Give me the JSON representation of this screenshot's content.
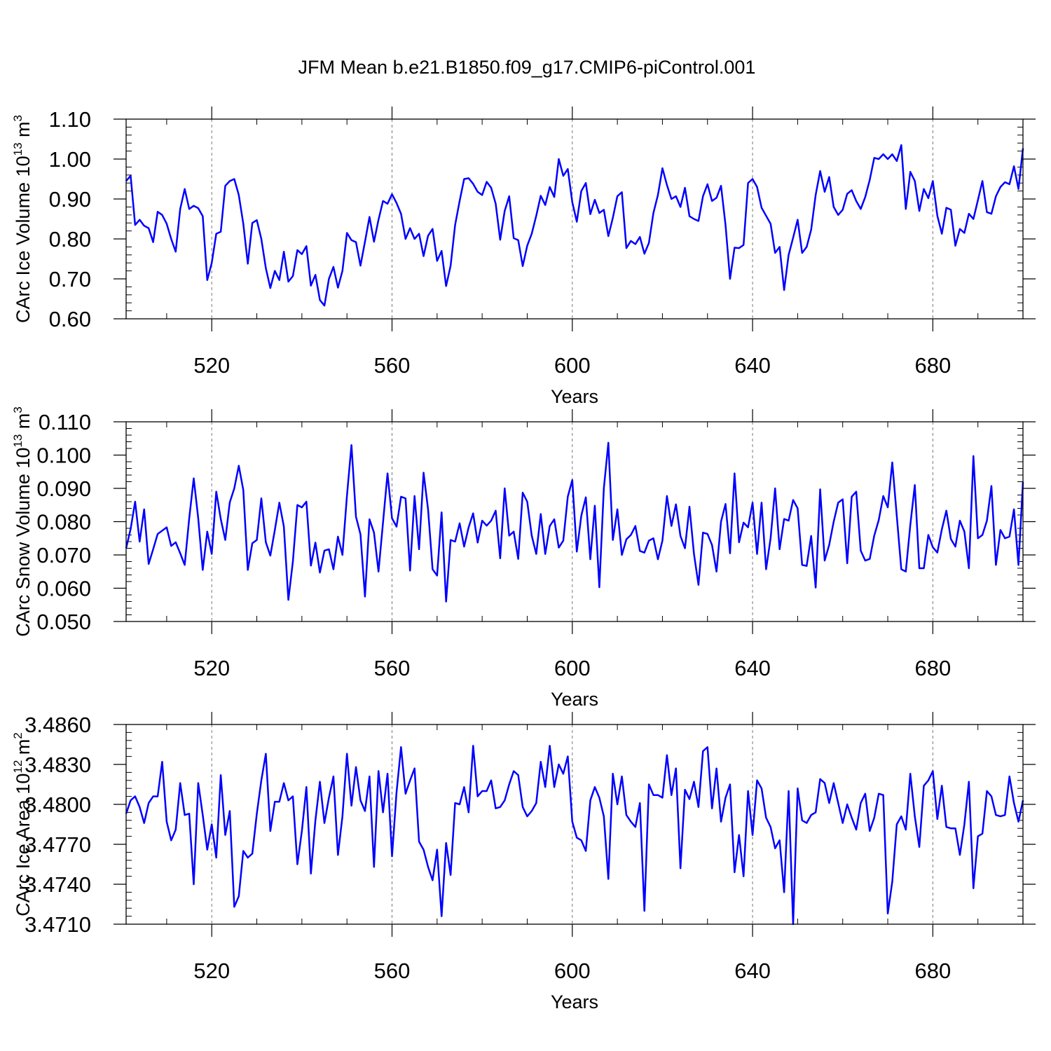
{
  "title": "JFM Mean b.e21.B1850.f09_g17.CMIP6-piControl.001",
  "line_color": "#0000ff",
  "chart_data": [
    {
      "type": "line",
      "ylabel": "CArc Ice Volume",
      "yunit_base": "10",
      "yunit_exp": "13",
      "yunit_tail": "m",
      "yunit_tail_exp": "3",
      "xlabel": "Years",
      "xlim": [
        501,
        700
      ],
      "ylim": [
        0.6,
        1.1
      ],
      "xticks": [
        520,
        560,
        600,
        640,
        680
      ],
      "xtick_labels": [
        "520",
        "560",
        "600",
        "640",
        "680"
      ],
      "yticks": [
        0.6,
        0.7,
        0.8,
        0.9,
        1.0,
        1.1
      ],
      "ytick_labels": [
        "0.60",
        "0.70",
        "0.80",
        "0.90",
        "1.00",
        "1.10"
      ],
      "grid": "vertical dashed at labeled x ticks",
      "x_start": 501,
      "series": [
        {
          "name": "CArc Ice Volume",
          "values": [
            0.945,
            0.958,
            0.835,
            0.848,
            0.833,
            0.827,
            0.792,
            0.868,
            0.86,
            0.838,
            0.8,
            0.768,
            0.875,
            0.925,
            0.875,
            0.883,
            0.877,
            0.857,
            0.697,
            0.74,
            0.813,
            0.818,
            0.933,
            0.945,
            0.95,
            0.91,
            0.838,
            0.738,
            0.84,
            0.847,
            0.8,
            0.727,
            0.677,
            0.72,
            0.697,
            0.768,
            0.693,
            0.707,
            0.772,
            0.762,
            0.782,
            0.683,
            0.71,
            0.647,
            0.633,
            0.7,
            0.73,
            0.678,
            0.72,
            0.815,
            0.797,
            0.792,
            0.733,
            0.793,
            0.855,
            0.793,
            0.848,
            0.895,
            0.888,
            0.912,
            0.89,
            0.863,
            0.8,
            0.827,
            0.8,
            0.813,
            0.757,
            0.808,
            0.825,
            0.745,
            0.77,
            0.682,
            0.733,
            0.835,
            0.895,
            0.95,
            0.952,
            0.938,
            0.918,
            0.91,
            0.943,
            0.928,
            0.888,
            0.798,
            0.87,
            0.907,
            0.802,
            0.797,
            0.732,
            0.783,
            0.813,
            0.858,
            0.908,
            0.885,
            0.93,
            0.905,
            1.0,
            0.958,
            0.975,
            0.892,
            0.843,
            0.92,
            0.94,
            0.862,
            0.898,
            0.865,
            0.873,
            0.807,
            0.853,
            0.907,
            0.917,
            0.777,
            0.795,
            0.787,
            0.805,
            0.763,
            0.79,
            0.865,
            0.91,
            0.977,
            0.935,
            0.9,
            0.907,
            0.88,
            0.928,
            0.857,
            0.85,
            0.845,
            0.907,
            0.937,
            0.895,
            0.903,
            0.933,
            0.835,
            0.7,
            0.778,
            0.777,
            0.785,
            0.94,
            0.95,
            0.93,
            0.878,
            0.858,
            0.838,
            0.765,
            0.78,
            0.672,
            0.76,
            0.803,
            0.848,
            0.765,
            0.78,
            0.823,
            0.91,
            0.97,
            0.918,
            0.955,
            0.88,
            0.86,
            0.873,
            0.913,
            0.922,
            0.895,
            0.875,
            0.905,
            0.948,
            1.003,
            1.0,
            1.012,
            1.0,
            1.012,
            0.995,
            1.035,
            0.875,
            0.968,
            0.945,
            0.87,
            0.925,
            0.902,
            0.945,
            0.858,
            0.813,
            0.878,
            0.873,
            0.783,
            0.825,
            0.815,
            0.863,
            0.85,
            0.897,
            0.945,
            0.867,
            0.863,
            0.907,
            0.93,
            0.942,
            0.937,
            0.982,
            0.925,
            1.027
          ]
        }
      ]
    },
    {
      "type": "line",
      "ylabel": "CArc Snow Volume",
      "yunit_base": "10",
      "yunit_exp": "13",
      "yunit_tail": "m",
      "yunit_tail_exp": "3",
      "xlabel": "Years",
      "xlim": [
        501,
        700
      ],
      "ylim": [
        0.05,
        0.11
      ],
      "xticks": [
        520,
        560,
        600,
        640,
        680
      ],
      "xtick_labels": [
        "520",
        "560",
        "600",
        "640",
        "680"
      ],
      "yticks": [
        0.05,
        0.06,
        0.07,
        0.08,
        0.09,
        0.1,
        0.11
      ],
      "ytick_labels": [
        "0.050",
        "0.060",
        "0.070",
        "0.080",
        "0.090",
        "0.100",
        "0.110"
      ],
      "grid": "vertical dashed at labeled x ticks",
      "x_start": 501,
      "series": [
        {
          "name": "CArc Snow Volume",
          "values": [
            0.072,
            0.0778,
            0.086,
            0.074,
            0.0837,
            0.0673,
            0.0717,
            0.0763,
            0.0773,
            0.0783,
            0.0727,
            0.0738,
            0.0705,
            0.067,
            0.081,
            0.093,
            0.081,
            0.0655,
            0.077,
            0.0703,
            0.089,
            0.0808,
            0.0745,
            0.0858,
            0.09,
            0.0968,
            0.0895,
            0.0655,
            0.0735,
            0.0745,
            0.087,
            0.0738,
            0.0698,
            0.0775,
            0.0857,
            0.0785,
            0.0565,
            0.068,
            0.085,
            0.0843,
            0.086,
            0.0668,
            0.0737,
            0.0647,
            0.0713,
            0.0717,
            0.0657,
            0.0755,
            0.07,
            0.0878,
            0.103,
            0.0815,
            0.0762,
            0.0575,
            0.0807,
            0.0767,
            0.065,
            0.0797,
            0.0945,
            0.081,
            0.0785,
            0.0875,
            0.087,
            0.0653,
            0.0877,
            0.0717,
            0.0947,
            0.0837,
            0.0657,
            0.0638,
            0.0828,
            0.056,
            0.0745,
            0.074,
            0.0795,
            0.0725,
            0.0783,
            0.0825,
            0.0737,
            0.0803,
            0.0788,
            0.0803,
            0.0833,
            0.069,
            0.09,
            0.0758,
            0.077,
            0.0688,
            0.0887,
            0.086,
            0.0758,
            0.0703,
            0.0823,
            0.0703,
            0.0787,
            0.0807,
            0.0722,
            0.0743,
            0.0875,
            0.0925,
            0.071,
            0.0818,
            0.0873,
            0.0687,
            0.0848,
            0.0603,
            0.09,
            0.1037,
            0.0745,
            0.0837,
            0.07,
            0.0747,
            0.076,
            0.0787,
            0.0712,
            0.0707,
            0.0743,
            0.075,
            0.0687,
            0.0743,
            0.0877,
            0.0787,
            0.0852,
            0.0757,
            0.072,
            0.0845,
            0.0703,
            0.061,
            0.0767,
            0.0763,
            0.073,
            0.065,
            0.08,
            0.0853,
            0.0705,
            0.0945,
            0.0738,
            0.0797,
            0.0783,
            0.0857,
            0.0703,
            0.0857,
            0.0657,
            0.075,
            0.09,
            0.0717,
            0.0808,
            0.0803,
            0.0865,
            0.084,
            0.067,
            0.0667,
            0.0757,
            0.0602,
            0.0897,
            0.0683,
            0.073,
            0.08,
            0.0857,
            0.0867,
            0.0675,
            0.0875,
            0.089,
            0.0713,
            0.0683,
            0.0688,
            0.0758,
            0.0805,
            0.0877,
            0.0843,
            0.0978,
            0.0817,
            0.0657,
            0.065,
            0.079,
            0.091,
            0.066,
            0.066,
            0.076,
            0.0723,
            0.0707,
            0.0777,
            0.0833,
            0.0748,
            0.0725,
            0.0803,
            0.077,
            0.066,
            0.0997,
            0.075,
            0.076,
            0.0803,
            0.0907,
            0.067,
            0.0775,
            0.075,
            0.0755,
            0.0837,
            0.067,
            0.092
          ]
        }
      ]
    },
    {
      "type": "line",
      "ylabel": "CArc Ice Area",
      "yunit_base": "10",
      "yunit_exp": "12",
      "yunit_tail": "m",
      "yunit_tail_exp": "2",
      "xlabel": "Years",
      "xlim": [
        501,
        700
      ],
      "ylim": [
        3.471,
        3.486
      ],
      "xticks": [
        520,
        560,
        600,
        640,
        680
      ],
      "xtick_labels": [
        "520",
        "560",
        "600",
        "640",
        "680"
      ],
      "yticks": [
        3.471,
        3.474,
        3.477,
        3.48,
        3.483,
        3.486
      ],
      "ytick_labels": [
        "3.4710",
        "3.4740",
        "3.4770",
        "3.4800",
        "3.4830",
        "3.4860"
      ],
      "grid": "vertical dashed at labeled x ticks",
      "x_start": 501,
      "series": [
        {
          "name": "CArc Ice Area",
          "values": [
            3.4793,
            3.4803,
            3.4806,
            3.4798,
            3.4786,
            3.4801,
            3.4806,
            3.4806,
            3.4832,
            3.4787,
            3.4773,
            3.4781,
            3.4816,
            3.4792,
            3.4793,
            3.474,
            3.4816,
            3.4792,
            3.4766,
            3.4785,
            3.476,
            3.4822,
            3.4777,
            3.4795,
            3.4723,
            3.4731,
            3.4765,
            3.476,
            3.4763,
            3.4793,
            3.4818,
            3.4838,
            3.478,
            3.4802,
            3.4802,
            3.4816,
            3.4803,
            3.4806,
            3.4755,
            3.478,
            3.4813,
            3.4748,
            3.4788,
            3.4817,
            3.4786,
            3.4805,
            3.4821,
            3.4762,
            3.4791,
            3.4838,
            3.4799,
            3.4828,
            3.4803,
            3.4795,
            3.4821,
            3.4753,
            3.4825,
            3.4794,
            3.4823,
            3.4761,
            3.4809,
            3.4843,
            3.4808,
            3.4818,
            3.4827,
            3.4772,
            3.4766,
            3.4753,
            3.4743,
            3.4766,
            3.4716,
            3.4771,
            3.4747,
            3.4801,
            3.48,
            3.4813,
            3.4794,
            3.4844,
            3.4806,
            3.481,
            3.481,
            3.4818,
            3.4797,
            3.4798,
            3.4803,
            3.4815,
            3.4825,
            3.4822,
            3.4798,
            3.4791,
            3.4795,
            3.4801,
            3.4832,
            3.4813,
            3.4844,
            3.4813,
            3.483,
            3.4823,
            3.4836,
            3.4787,
            3.4775,
            3.4773,
            3.4765,
            3.4803,
            3.4813,
            3.4805,
            3.4791,
            3.4744,
            3.4823,
            3.48,
            3.4821,
            3.4792,
            3.4787,
            3.4783,
            3.4801,
            3.472,
            3.4815,
            3.4807,
            3.4807,
            3.4805,
            3.4837,
            3.4807,
            3.4827,
            3.4752,
            3.4811,
            3.4804,
            3.4817,
            3.4798,
            3.484,
            3.4843,
            3.4797,
            3.4827,
            3.4787,
            3.4805,
            3.4815,
            3.4749,
            3.4777,
            3.4746,
            3.481,
            3.4777,
            3.4818,
            3.4812,
            3.479,
            3.4783,
            3.4767,
            3.4773,
            3.4734,
            3.481,
            3.471,
            3.4812,
            3.4788,
            3.4786,
            3.4792,
            3.4794,
            3.4819,
            3.4816,
            3.4801,
            3.4816,
            3.4801,
            3.4786,
            3.48,
            3.479,
            3.4781,
            3.4801,
            3.4808,
            3.478,
            3.479,
            3.4808,
            3.4807,
            3.4718,
            3.4742,
            3.4785,
            3.4791,
            3.4781,
            3.4823,
            3.4791,
            3.4768,
            3.4814,
            3.4818,
            3.4825,
            3.4789,
            3.4814,
            3.4783,
            3.4782,
            3.4782,
            3.4762,
            3.4785,
            3.4817,
            3.4737,
            3.4776,
            3.4778,
            3.481,
            3.4806,
            3.4792,
            3.4791,
            3.4792,
            3.4821,
            3.4801,
            3.4787,
            3.4803
          ]
        }
      ]
    }
  ]
}
